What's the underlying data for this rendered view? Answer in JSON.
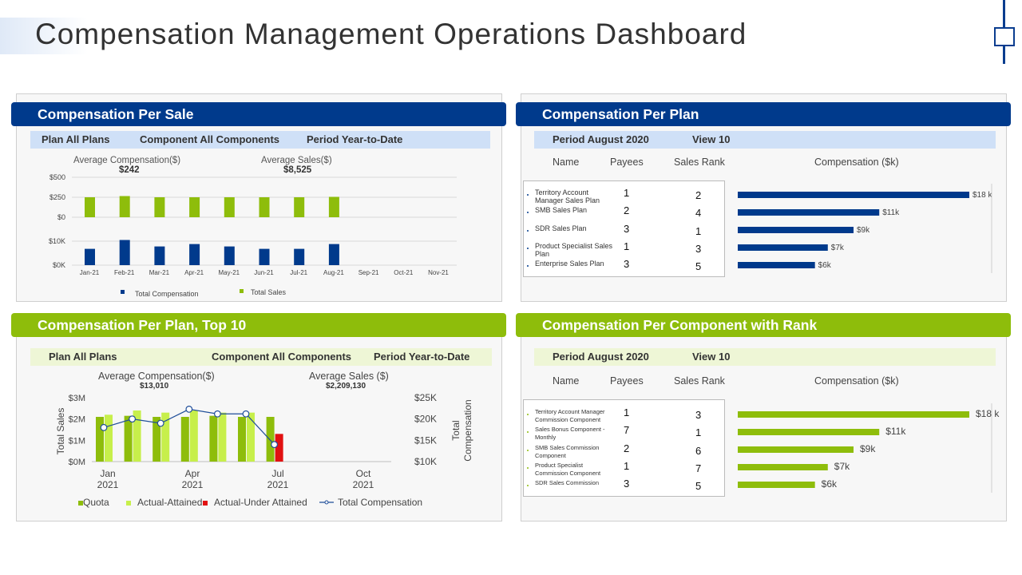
{
  "page": {
    "title": "Compensation Management Operations Dashboard"
  },
  "colors": {
    "blue": "#003a8c",
    "green": "#8ebd0b",
    "light_green": "#c7ef4b",
    "red": "#e11111",
    "line_blue": "#1f4e99"
  },
  "panel1": {
    "header": "Compensation Per Sale",
    "filter_plan": "Plan All Plans",
    "filter_component": "Component All Components",
    "filter_period": "Period Year-to-Date",
    "avg_comp_label": "Average Compensation($)",
    "avg_comp_value": "$242",
    "avg_sales_label": "Average Sales($)",
    "avg_sales_value": "$8,525",
    "legend_comp": "Total Compensation",
    "legend_sales": "Total Sales"
  },
  "panel2": {
    "header": "Compensation Per Plan",
    "filter_period": "Period August  2020",
    "filter_view": "View 10",
    "col_name": "Name",
    "col_payees": "Payees",
    "col_rank": "Sales Rank",
    "col_comp": "Compensation ($k)",
    "rows": [
      {
        "name": "Territory Account Manager Sales Plan",
        "payees": "1",
        "rank": "2",
        "comp": "$18 k",
        "value": 18
      },
      {
        "name": "SMB Sales Plan",
        "payees": "2",
        "rank": "4",
        "comp": "$11k",
        "value": 11
      },
      {
        "name": "SDR Sales Plan",
        "payees": "3",
        "rank": "1",
        "comp": "$9k",
        "value": 9
      },
      {
        "name": "Product Specialist Sales Plan",
        "payees": "1",
        "rank": "3",
        "comp": "$7k",
        "value": 7
      },
      {
        "name": "Enterprise Sales Plan",
        "payees": "3",
        "rank": "5",
        "comp": "$6k",
        "value": 6
      }
    ]
  },
  "panel3": {
    "header": "Compensation Per Plan, Top 10",
    "filter_plan": "Plan All Plans",
    "filter_component": "Component All Components",
    "filter_period": "Period Year-to-Date",
    "avg_comp_label": "Average Compensation($)",
    "avg_comp_value": "$13,010",
    "avg_sales_label": "Average Sales ($)",
    "avg_sales_value": "$2,209,130",
    "legend": [
      "Quota",
      "Actual-Attained",
      "Actual-Under Attained",
      "Total Compensation"
    ]
  },
  "panel4": {
    "header": "Compensation Per Component with Rank",
    "filter_period": "Period August  2020",
    "filter_view": "View 10",
    "col_name": "Name",
    "col_payees": "Payees",
    "col_rank": "Sales Rank",
    "col_comp": "Compensation ($k)",
    "rows": [
      {
        "name": "Territory Account Manager Commission Component",
        "payees": "1",
        "rank": "3",
        "comp": "$18 k",
        "value": 18
      },
      {
        "name": "Sales Bonus Component - Monthly",
        "payees": "7",
        "rank": "1",
        "comp": "$11k",
        "value": 11
      },
      {
        "name": "SMB Sales Commission Component",
        "payees": "2",
        "rank": "6",
        "comp": "$9k",
        "value": 9
      },
      {
        "name": "Product Specialist Commission Component",
        "payees": "1",
        "rank": "7",
        "comp": "$7k",
        "value": 7
      },
      {
        "name": "SDR Sales Commission",
        "payees": "3",
        "rank": "5",
        "comp": "$6k",
        "value": 6
      }
    ]
  },
  "chart_data": [
    {
      "type": "bar",
      "title": "Compensation Per Sale",
      "categories": [
        "Jan-21",
        "Feb-21",
        "Mar-21",
        "Apr-21",
        "May-21",
        "Jun-21",
        "Jul-21",
        "Aug-21",
        "Sep-21",
        "Oct-21",
        "Nov-21"
      ],
      "series": [
        {
          "name": "Total Sales",
          "values": [
            250,
            265,
            250,
            250,
            250,
            250,
            250,
            255,
            null,
            null,
            null
          ]
        },
        {
          "name": "Total Compensation",
          "values": [
            6.8,
            10.5,
            7.8,
            8.8,
            7.8,
            6.8,
            6.8,
            8.8,
            null,
            null,
            null
          ]
        }
      ],
      "upper_ticks": [
        "$500",
        "$250",
        "$0"
      ],
      "lower_ticks": [
        "$10K",
        "$0K"
      ]
    },
    {
      "type": "bar",
      "title": "Compensation Per Plan",
      "categories": [
        "Territory Account Manager Sales Plan",
        "SMB Sales Plan",
        "SDR Sales Plan",
        "Product Specialist Sales Plan",
        "Enterprise Sales Plan"
      ],
      "values": [
        18,
        11,
        9,
        7,
        6
      ],
      "labels": [
        "$18 k",
        "$11k",
        "$9k",
        "$7k",
        "$6k"
      ],
      "xlabel": "Compensation ($k)"
    },
    {
      "type": "bar",
      "title": "Compensation Per Plan, Top 10",
      "x_ticks": [
        [
          "Jan",
          "2021"
        ],
        [
          "Apr",
          "2021"
        ],
        [
          "Jul",
          "2021"
        ],
        [
          "Oct",
          "2021"
        ]
      ],
      "ylabel": "Total Sales",
      "y2label": "Total Compensation",
      "y_ticks": [
        "$3M",
        "$2M",
        "$1M",
        "$0M"
      ],
      "y2_ticks": [
        "$25K",
        "$20K",
        "$15K",
        "$10K"
      ],
      "ylim": [
        0,
        3
      ],
      "y2lim": [
        10,
        25
      ],
      "groups": [
        {
          "quota": 2.1,
          "attained": 2.2,
          "under": null,
          "comp": 18.0
        },
        {
          "quota": 2.15,
          "attained": 2.4,
          "under": null,
          "comp": 20.0
        },
        {
          "quota": 2.1,
          "attained": 2.3,
          "under": null,
          "comp": 19.0
        },
        {
          "quota": 2.1,
          "attained": 2.4,
          "under": null,
          "comp": 22.3
        },
        {
          "quota": 2.15,
          "attained": 2.3,
          "under": null,
          "comp": 21.2
        },
        {
          "quota": 2.1,
          "attained": 2.3,
          "under": null,
          "comp": 21.2
        },
        {
          "quota": 2.1,
          "attained": null,
          "under": 1.3,
          "comp": 14.0
        }
      ]
    },
    {
      "type": "bar",
      "title": "Compensation Per Component with Rank",
      "categories": [
        "Territory Account Manager Commission Component",
        "Sales Bonus Component - Monthly",
        "SMB Sales Commission Component",
        "Product Specialist Commission Component",
        "SDR Sales Commission"
      ],
      "values": [
        18,
        11,
        9,
        7,
        6
      ],
      "labels": [
        "$18 k",
        "$11k",
        "$9k",
        "$7k",
        "$6k"
      ],
      "xlabel": "Compensation ($k)"
    }
  ]
}
